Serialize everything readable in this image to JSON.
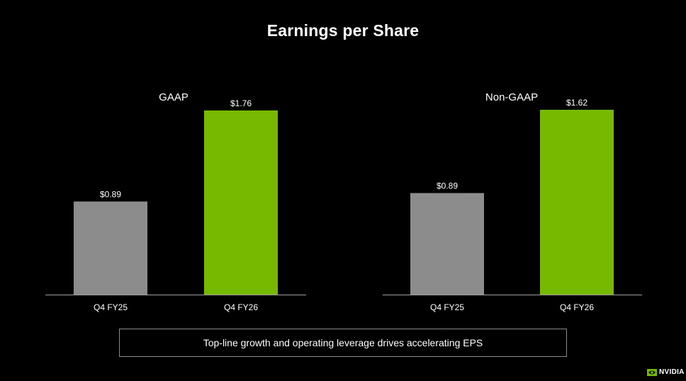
{
  "page": {
    "title": "Earnings per Share",
    "callout": "Top-line growth and operating leverage drives accelerating EPS",
    "logo_text": "NVIDIA"
  },
  "colors": {
    "background": "#000000",
    "prior_bar": "#8c8c8c",
    "current_bar": "#76b900",
    "axis": "#a0a0a0",
    "text": "#ffffff",
    "box_border": "#8a8a8a"
  },
  "chart_data": [
    {
      "type": "bar",
      "title": "GAAP",
      "categories": [
        "Q4 FY25",
        "Q4 FY26"
      ],
      "values": [
        0.89,
        1.76
      ],
      "data_labels": [
        "$0.89",
        "$1.76"
      ],
      "ylim": [
        0,
        1.76
      ],
      "xlabel": "",
      "ylabel": "",
      "grid": false
    },
    {
      "type": "bar",
      "title": "Non-GAAP",
      "categories": [
        "Q4 FY25",
        "Q4 FY26"
      ],
      "values": [
        0.89,
        1.62
      ],
      "data_labels": [
        "$0.89",
        "$1.62"
      ],
      "ylim": [
        0,
        1.62
      ],
      "xlabel": "",
      "ylabel": "",
      "grid": false
    }
  ]
}
